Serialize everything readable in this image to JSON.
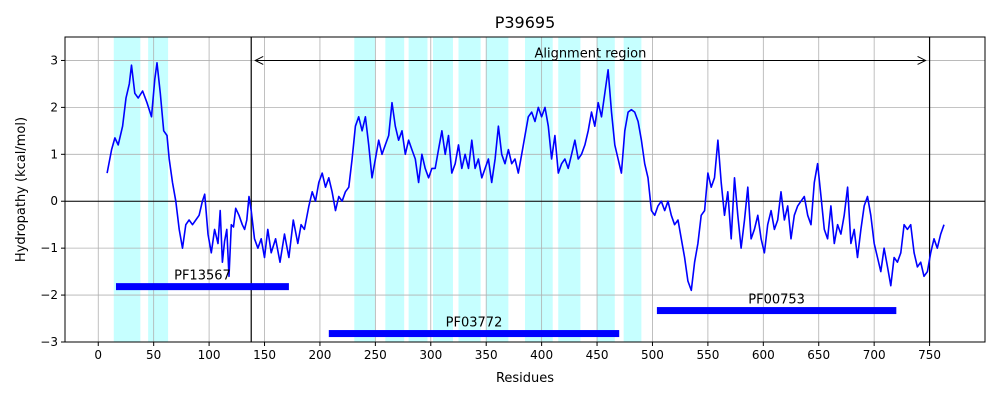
{
  "chart_data": {
    "type": "line",
    "title": "P39695",
    "xlabel": "Residues",
    "ylabel": "Hydropathy (kcal/mol)",
    "xlim": [
      -30,
      800
    ],
    "ylim": [
      -3,
      3.5
    ],
    "xticks": [
      0,
      50,
      100,
      150,
      200,
      250,
      300,
      350,
      400,
      450,
      500,
      550,
      600,
      650,
      700,
      750
    ],
    "yticks": [
      -3,
      -2,
      -1,
      0,
      1,
      2,
      3
    ],
    "grid": true,
    "colors": {
      "line": "#0000ff",
      "bars": "#0000ff",
      "shade": "#c6ffff",
      "grid": "#b0b0b0",
      "axes": "#000000"
    },
    "shaded_regions": [
      [
        14,
        38
      ],
      [
        45,
        63
      ],
      [
        231,
        250
      ],
      [
        259,
        276
      ],
      [
        280,
        297
      ],
      [
        302,
        320
      ],
      [
        325,
        345
      ],
      [
        350,
        370
      ],
      [
        385,
        410
      ],
      [
        415,
        435
      ],
      [
        450,
        466
      ],
      [
        474,
        490
      ]
    ],
    "vlines": [
      138,
      750
    ],
    "alignment_region": {
      "label": "Alignment region",
      "start": 138,
      "end": 750,
      "y": 3.0
    },
    "domains": [
      {
        "name": "PF13567",
        "start": 16,
        "end": 172,
        "y": -1.82
      },
      {
        "name": "PF03772",
        "start": 208,
        "end": 470,
        "y": -2.82
      },
      {
        "name": "PF00753",
        "start": 504,
        "end": 720,
        "y": -2.33
      }
    ],
    "series": [
      {
        "points": [
          [
            8,
            0.6
          ],
          [
            12,
            1.1
          ],
          [
            15,
            1.35
          ],
          [
            18,
            1.2
          ],
          [
            22,
            1.6
          ],
          [
            25,
            2.2
          ],
          [
            28,
            2.5
          ],
          [
            30,
            2.9
          ],
          [
            33,
            2.3
          ],
          [
            36,
            2.2
          ],
          [
            40,
            2.35
          ],
          [
            44,
            2.1
          ],
          [
            48,
            1.8
          ],
          [
            51,
            2.6
          ],
          [
            53,
            2.95
          ],
          [
            56,
            2.3
          ],
          [
            59,
            1.5
          ],
          [
            62,
            1.4
          ],
          [
            64,
            0.9
          ],
          [
            67,
            0.4
          ],
          [
            70,
            0.0
          ],
          [
            73,
            -0.6
          ],
          [
            76,
            -1.0
          ],
          [
            79,
            -0.5
          ],
          [
            82,
            -0.4
          ],
          [
            85,
            -0.5
          ],
          [
            88,
            -0.4
          ],
          [
            91,
            -0.3
          ],
          [
            94,
            0.0
          ],
          [
            96,
            0.15
          ],
          [
            99,
            -0.7
          ],
          [
            102,
            -1.1
          ],
          [
            105,
            -0.6
          ],
          [
            108,
            -0.9
          ],
          [
            110,
            -0.2
          ],
          [
            112,
            -1.3
          ],
          [
            114,
            -0.85
          ],
          [
            116,
            -0.6
          ],
          [
            118,
            -1.6
          ],
          [
            120,
            -0.5
          ],
          [
            122,
            -0.55
          ],
          [
            124,
            -0.15
          ],
          [
            127,
            -0.3
          ],
          [
            130,
            -0.5
          ],
          [
            132,
            -0.6
          ],
          [
            134,
            -0.4
          ],
          [
            136,
            0.1
          ],
          [
            138,
            -0.2
          ],
          [
            141,
            -0.8
          ],
          [
            144,
            -1.0
          ],
          [
            147,
            -0.8
          ],
          [
            150,
            -1.2
          ],
          [
            153,
            -0.6
          ],
          [
            156,
            -1.1
          ],
          [
            160,
            -0.8
          ],
          [
            164,
            -1.3
          ],
          [
            168,
            -0.7
          ],
          [
            172,
            -1.2
          ],
          [
            176,
            -0.4
          ],
          [
            180,
            -0.9
          ],
          [
            183,
            -0.5
          ],
          [
            186,
            -0.6
          ],
          [
            190,
            -0.1
          ],
          [
            193,
            0.2
          ],
          [
            196,
            0.0
          ],
          [
            199,
            0.4
          ],
          [
            202,
            0.6
          ],
          [
            205,
            0.3
          ],
          [
            208,
            0.5
          ],
          [
            211,
            0.2
          ],
          [
            214,
            -0.2
          ],
          [
            217,
            0.1
          ],
          [
            220,
            0.0
          ],
          [
            223,
            0.2
          ],
          [
            226,
            0.3
          ],
          [
            229,
            0.9
          ],
          [
            232,
            1.6
          ],
          [
            235,
            1.8
          ],
          [
            238,
            1.5
          ],
          [
            241,
            1.8
          ],
          [
            244,
            1.2
          ],
          [
            247,
            0.5
          ],
          [
            250,
            0.9
          ],
          [
            253,
            1.3
          ],
          [
            256,
            1.0
          ],
          [
            259,
            1.2
          ],
          [
            262,
            1.4
          ],
          [
            265,
            2.1
          ],
          [
            268,
            1.6
          ],
          [
            271,
            1.3
          ],
          [
            274,
            1.5
          ],
          [
            277,
            1.0
          ],
          [
            280,
            1.3
          ],
          [
            283,
            1.1
          ],
          [
            286,
            0.9
          ],
          [
            289,
            0.4
          ],
          [
            292,
            1.0
          ],
          [
            295,
            0.7
          ],
          [
            298,
            0.5
          ],
          [
            301,
            0.7
          ],
          [
            304,
            0.7
          ],
          [
            307,
            1.1
          ],
          [
            310,
            1.5
          ],
          [
            313,
            1.0
          ],
          [
            316,
            1.4
          ],
          [
            319,
            0.6
          ],
          [
            322,
            0.8
          ],
          [
            325,
            1.2
          ],
          [
            328,
            0.7
          ],
          [
            331,
            1.0
          ],
          [
            334,
            0.7
          ],
          [
            337,
            1.3
          ],
          [
            340,
            0.7
          ],
          [
            343,
            0.9
          ],
          [
            346,
            0.5
          ],
          [
            349,
            0.7
          ],
          [
            352,
            0.9
          ],
          [
            355,
            0.4
          ],
          [
            358,
            0.9
          ],
          [
            361,
            1.6
          ],
          [
            364,
            1.0
          ],
          [
            367,
            0.8
          ],
          [
            370,
            1.1
          ],
          [
            373,
            0.8
          ],
          [
            376,
            0.9
          ],
          [
            379,
            0.6
          ],
          [
            382,
            1.0
          ],
          [
            385,
            1.4
          ],
          [
            388,
            1.8
          ],
          [
            391,
            1.9
          ],
          [
            394,
            1.7
          ],
          [
            397,
            2.0
          ],
          [
            400,
            1.8
          ],
          [
            403,
            2.0
          ],
          [
            406,
            1.6
          ],
          [
            409,
            0.9
          ],
          [
            412,
            1.4
          ],
          [
            415,
            0.6
          ],
          [
            418,
            0.8
          ],
          [
            421,
            0.9
          ],
          [
            424,
            0.7
          ],
          [
            427,
            1.0
          ],
          [
            430,
            1.3
          ],
          [
            433,
            0.9
          ],
          [
            436,
            1.0
          ],
          [
            439,
            1.2
          ],
          [
            442,
            1.5
          ],
          [
            445,
            1.9
          ],
          [
            448,
            1.6
          ],
          [
            451,
            2.1
          ],
          [
            454,
            1.8
          ],
          [
            457,
            2.3
          ],
          [
            460,
            2.8
          ],
          [
            463,
            1.9
          ],
          [
            466,
            1.2
          ],
          [
            469,
            0.9
          ],
          [
            472,
            0.6
          ],
          [
            475,
            1.5
          ],
          [
            478,
            1.9
          ],
          [
            481,
            1.95
          ],
          [
            484,
            1.9
          ],
          [
            487,
            1.7
          ],
          [
            490,
            1.3
          ],
          [
            493,
            0.8
          ],
          [
            496,
            0.5
          ],
          [
            499,
            -0.2
          ],
          [
            502,
            -0.3
          ],
          [
            505,
            -0.1
          ],
          [
            508,
            0.0
          ],
          [
            511,
            -0.2
          ],
          [
            514,
            0.0
          ],
          [
            517,
            -0.3
          ],
          [
            520,
            -0.5
          ],
          [
            523,
            -0.4
          ],
          [
            526,
            -0.8
          ],
          [
            529,
            -1.2
          ],
          [
            532,
            -1.7
          ],
          [
            535,
            -1.9
          ],
          [
            538,
            -1.3
          ],
          [
            541,
            -0.9
          ],
          [
            544,
            -0.3
          ],
          [
            547,
            -0.2
          ],
          [
            550,
            0.6
          ],
          [
            553,
            0.3
          ],
          [
            556,
            0.5
          ],
          [
            559,
            1.3
          ],
          [
            562,
            0.4
          ],
          [
            565,
            -0.3
          ],
          [
            568,
            0.2
          ],
          [
            571,
            -0.8
          ],
          [
            574,
            0.5
          ],
          [
            577,
            -0.3
          ],
          [
            580,
            -1.0
          ],
          [
            583,
            -0.4
          ],
          [
            586,
            0.3
          ],
          [
            589,
            -0.8
          ],
          [
            592,
            -0.6
          ],
          [
            595,
            -0.3
          ],
          [
            598,
            -0.8
          ],
          [
            601,
            -1.1
          ],
          [
            604,
            -0.5
          ],
          [
            607,
            -0.2
          ],
          [
            610,
            -0.6
          ],
          [
            613,
            -0.4
          ],
          [
            616,
            0.2
          ],
          [
            619,
            -0.4
          ],
          [
            622,
            -0.1
          ],
          [
            625,
            -0.8
          ],
          [
            628,
            -0.3
          ],
          [
            631,
            -0.1
          ],
          [
            634,
            0.0
          ],
          [
            637,
            0.1
          ],
          [
            640,
            -0.3
          ],
          [
            643,
            -0.5
          ],
          [
            646,
            0.4
          ],
          [
            649,
            0.8
          ],
          [
            652,
            0.1
          ],
          [
            655,
            -0.6
          ],
          [
            658,
            -0.8
          ],
          [
            661,
            -0.1
          ],
          [
            664,
            -0.9
          ],
          [
            667,
            -0.5
          ],
          [
            670,
            -0.7
          ],
          [
            673,
            -0.3
          ],
          [
            676,
            0.3
          ],
          [
            679,
            -0.9
          ],
          [
            682,
            -0.6
          ],
          [
            685,
            -1.2
          ],
          [
            688,
            -0.6
          ],
          [
            691,
            -0.1
          ],
          [
            694,
            0.1
          ],
          [
            697,
            -0.3
          ],
          [
            700,
            -0.9
          ],
          [
            703,
            -1.2
          ],
          [
            706,
            -1.5
          ],
          [
            709,
            -1.0
          ],
          [
            712,
            -1.4
          ],
          [
            715,
            -1.8
          ],
          [
            718,
            -1.2
          ],
          [
            721,
            -1.3
          ],
          [
            724,
            -1.1
          ],
          [
            727,
            -0.5
          ],
          [
            730,
            -0.6
          ],
          [
            733,
            -0.5
          ],
          [
            736,
            -1.1
          ],
          [
            739,
            -1.4
          ],
          [
            742,
            -1.3
          ],
          [
            745,
            -1.6
          ],
          [
            748,
            -1.5
          ],
          [
            751,
            -1.1
          ],
          [
            754,
            -0.8
          ],
          [
            757,
            -1.0
          ],
          [
            760,
            -0.7
          ],
          [
            763,
            -0.5
          ]
        ]
      }
    ]
  }
}
